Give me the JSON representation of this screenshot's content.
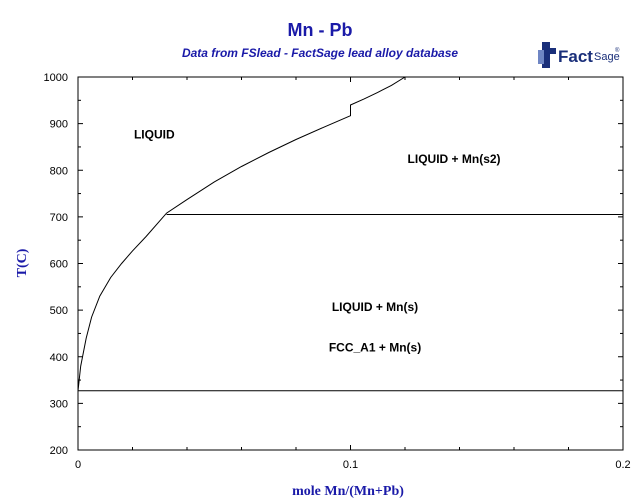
{
  "chart_data": {
    "type": "line",
    "title": "Mn - Pb",
    "subtitle": "Data from FSlead - FactSage lead alloy database",
    "logo": {
      "text_main": "Fact",
      "text_sage": "Sage",
      "mark": "®"
    },
    "xlabel": "mole Mn/(Mn+Pb)",
    "ylabel": "T(C)",
    "xlim": [
      0,
      0.2
    ],
    "ylim": [
      200,
      1000
    ],
    "xticks": [
      0,
      0.1,
      0.2
    ],
    "xtick_labels": [
      "0",
      "0.1",
      "0.2"
    ],
    "yticks": [
      200,
      300,
      400,
      500,
      600,
      700,
      800,
      900,
      1000
    ],
    "ytick_labels": [
      "200",
      "300",
      "400",
      "500",
      "600",
      "700",
      "800",
      "900",
      "1000"
    ],
    "grid": false,
    "liquidus": {
      "x": [
        0.0,
        0.001,
        0.003,
        0.005,
        0.008,
        0.012,
        0.016,
        0.02,
        0.025,
        0.0325,
        0.04,
        0.05,
        0.06,
        0.07,
        0.08,
        0.09,
        0.1,
        0.11,
        0.12
      ],
      "y": [
        327,
        380,
        440,
        485,
        530,
        570,
        600,
        627,
        658,
        708,
        737,
        775,
        808,
        838,
        866,
        892,
        917,
        940,
        965
      ]
    },
    "liquidus_upper": {
      "x": [
        0.1,
        0.105,
        0.11,
        0.115,
        0.12
      ],
      "y": [
        940,
        953,
        967,
        982,
        1000
      ]
    },
    "horizontal_lines": [
      {
        "y": 705,
        "x_from": 0.0325,
        "x_to": 0.2
      },
      {
        "y": 327,
        "x_from": 0.0,
        "x_to": 0.2
      }
    ],
    "regions": [
      {
        "label": "LIQUID",
        "x": 0.028,
        "y": 868
      },
      {
        "label": "LIQUID + Mn(s2)",
        "x": 0.138,
        "y": 816
      },
      {
        "label": "LIQUID + Mn(s)",
        "x": 0.109,
        "y": 498
      },
      {
        "label": "FCC_A1 + Mn(s)",
        "x": 0.109,
        "y": 411
      }
    ],
    "colors": {
      "title": "#1a1aa8",
      "axes": "#000000",
      "curve": "#000000"
    }
  }
}
